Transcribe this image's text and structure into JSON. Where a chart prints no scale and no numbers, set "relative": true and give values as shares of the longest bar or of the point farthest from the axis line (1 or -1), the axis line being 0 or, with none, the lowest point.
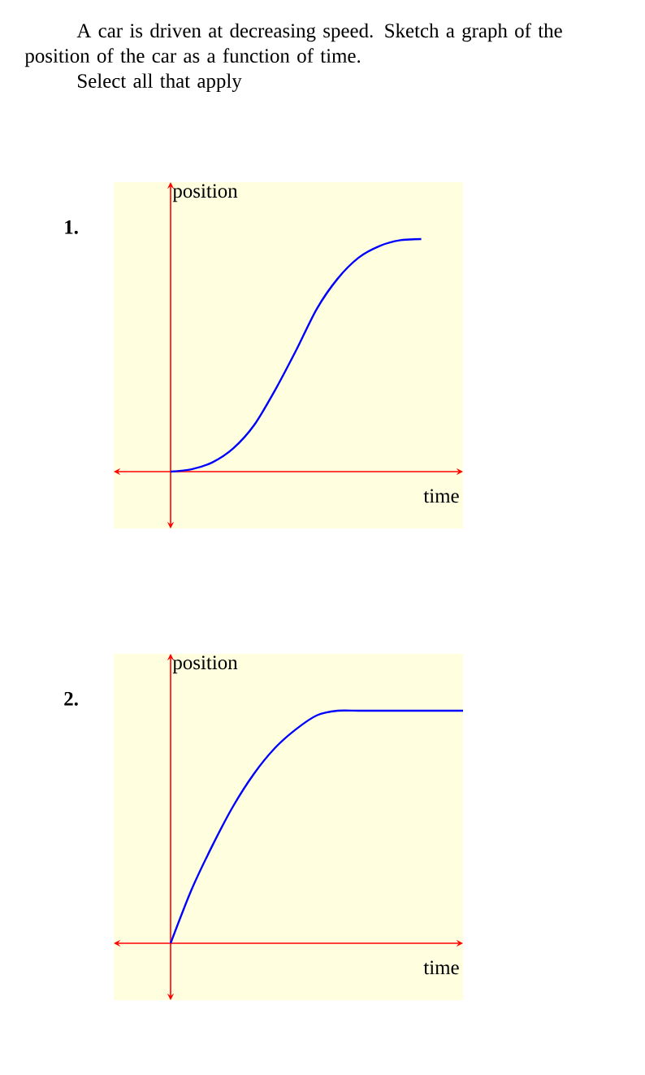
{
  "chart_data": [
    {
      "type": "line",
      "title": "1.",
      "xlabel": "time",
      "ylabel": "position",
      "relative": true,
      "annotations": [
        "A car is driven at decreasing speed. Sketch a graph of the position of the car as a function of time.",
        "Select all that apply"
      ],
      "categories": [
        null,
        null,
        null,
        null,
        null,
        null,
        null,
        null,
        null,
        null,
        null,
        null,
        null,
        null,
        null
      ],
      "series": [
        {
          "color": "#0000ff",
          "values": [
            0,
            0.01,
            0.04,
            0.1,
            0.2,
            0.35,
            0.52,
            0.7,
            0.83,
            0.92,
            0.97,
            0.995,
            1,
            null,
            null
          ]
        }
      ]
    },
    {
      "type": "line",
      "title": "2.",
      "xlabel": "time",
      "ylabel": "position",
      "relative": true,
      "categories": [
        null,
        null,
        null,
        null,
        null,
        null,
        null,
        null,
        null,
        null,
        null,
        null,
        null,
        null,
        null
      ],
      "series": [
        {
          "color": "#0000ff",
          "values": [
            0,
            0.23,
            0.42,
            0.59,
            0.73,
            0.84,
            0.92,
            0.98,
            1,
            1,
            1,
            1,
            1,
            1,
            1
          ]
        }
      ]
    }
  ]
}
